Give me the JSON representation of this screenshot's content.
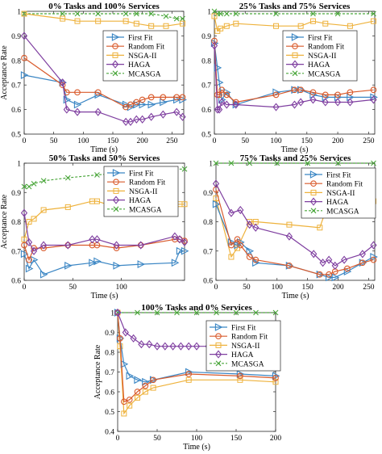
{
  "colors": {
    "first_fit": "#3b86c4",
    "random_fit": "#d95a2b",
    "nsga": "#eeb23c",
    "haga": "#7f3fa0",
    "mcasga": "#4aa63b"
  },
  "chart_data": [
    {
      "type": "line",
      "title": "0% Tasks and 100% Services",
      "xlabel": "Time (s)",
      "ylabel": "Acceptance Rate",
      "xlim": [
        0,
        270
      ],
      "ylim": [
        0.5,
        1
      ],
      "xticks": [
        0,
        50,
        100,
        150,
        200,
        250
      ],
      "yticks": [
        0.5,
        0.6,
        0.7,
        0.8,
        0.9,
        1
      ],
      "show_ylabel": true,
      "legend": "right",
      "series": [
        {
          "name": "First Fit",
          "x": [
            0,
            65,
            72,
            90,
            125,
            172,
            180,
            190,
            200,
            215,
            235,
            258,
            268
          ],
          "y": [
            0.74,
            0.71,
            0.64,
            0.62,
            0.66,
            0.62,
            0.61,
            0.62,
            0.62,
            0.62,
            0.63,
            0.64,
            0.64
          ]
        },
        {
          "name": "Random Fit",
          "x": [
            0,
            65,
            72,
            90,
            125,
            172,
            180,
            190,
            200,
            215,
            235,
            258,
            268
          ],
          "y": [
            0.81,
            0.7,
            0.67,
            0.67,
            0.67,
            0.61,
            0.62,
            0.63,
            0.64,
            0.65,
            0.65,
            0.65,
            0.65
          ]
        },
        {
          "name": "NSGA-II",
          "x": [
            0,
            65,
            90,
            125,
            172,
            190,
            215,
            240,
            268
          ],
          "y": [
            0.99,
            0.97,
            0.96,
            0.96,
            0.96,
            0.95,
            0.94,
            0.94,
            0.95
          ]
        },
        {
          "name": "HAGA",
          "x": [
            0,
            65,
            72,
            90,
            125,
            172,
            180,
            190,
            200,
            215,
            235,
            258,
            268
          ],
          "y": [
            0.9,
            0.71,
            0.6,
            0.59,
            0.59,
            0.55,
            0.55,
            0.56,
            0.56,
            0.57,
            0.58,
            0.59,
            0.57
          ]
        },
        {
          "name": "MCASGA",
          "x": [
            0,
            65,
            90,
            125,
            172,
            190,
            215,
            240,
            258,
            268
          ],
          "y": [
            0.99,
            0.99,
            0.99,
            0.99,
            0.99,
            0.99,
            0.99,
            0.98,
            0.97,
            0.97
          ]
        }
      ]
    },
    {
      "type": "line",
      "title": "25% Tasks and 75% Services",
      "xlabel": "Time (s)",
      "ylabel": "",
      "xlim": [
        0,
        260
      ],
      "ylim": [
        0.5,
        1
      ],
      "xticks": [
        0,
        50,
        100,
        150,
        200,
        250
      ],
      "yticks": [
        0.5,
        0.6,
        0.7,
        0.8,
        0.9,
        1
      ],
      "show_ylabel": false,
      "legend": "right",
      "series": [
        {
          "name": "First Fit",
          "x": [
            0,
            5,
            8,
            12,
            20,
            35,
            100,
            130,
            140,
            160,
            180,
            200,
            220,
            258
          ],
          "y": [
            0.87,
            0.77,
            0.71,
            0.64,
            0.67,
            0.62,
            0.67,
            0.68,
            0.68,
            0.66,
            0.65,
            0.65,
            0.65,
            0.65
          ]
        },
        {
          "name": "Random Fit",
          "x": [
            0,
            5,
            8,
            12,
            20,
            35,
            100,
            130,
            140,
            160,
            180,
            200,
            220,
            258
          ],
          "y": [
            0.88,
            0.66,
            0.66,
            0.68,
            0.66,
            0.63,
            0.66,
            0.68,
            0.68,
            0.67,
            0.66,
            0.66,
            0.67,
            0.68
          ]
        },
        {
          "name": "NSGA-II",
          "x": [
            0,
            5,
            10,
            20,
            35,
            100,
            140,
            160,
            180,
            220,
            258
          ],
          "y": [
            0.98,
            0.92,
            0.93,
            0.94,
            0.95,
            0.94,
            0.94,
            0.96,
            0.95,
            0.94,
            0.96
          ]
        },
        {
          "name": "HAGA",
          "x": [
            0,
            5,
            8,
            12,
            20,
            35,
            100,
            130,
            140,
            160,
            180,
            200,
            220,
            258
          ],
          "y": [
            0.86,
            0.6,
            0.6,
            0.63,
            0.62,
            0.62,
            0.61,
            0.62,
            0.63,
            0.64,
            0.63,
            0.63,
            0.63,
            0.64
          ]
        },
        {
          "name": "MCASGA",
          "x": [
            0,
            5,
            10,
            20,
            35,
            100,
            160,
            200,
            258
          ],
          "y": [
            1,
            0.99,
            0.99,
            0.99,
            0.99,
            0.99,
            0.99,
            0.99,
            0.99
          ]
        }
      ]
    },
    {
      "type": "line",
      "title": "50% Tasks and 50% Services",
      "xlabel": "Time (s)",
      "ylabel": "Acceptance Rate",
      "xlim": [
        0,
        165
      ],
      "ylim": [
        0.6,
        1
      ],
      "xticks": [
        0,
        50,
        100
      ],
      "yticks": [
        0.6,
        0.7,
        0.8,
        0.9,
        1
      ],
      "show_ylabel": true,
      "legend": "right",
      "series": [
        {
          "name": "First Fit",
          "x": [
            0,
            5,
            10,
            20,
            45,
            70,
            75,
            95,
            120,
            155,
            160,
            165
          ],
          "y": [
            0.69,
            0.64,
            0.67,
            0.62,
            0.65,
            0.66,
            0.665,
            0.65,
            0.655,
            0.66,
            0.7,
            0.7
          ]
        },
        {
          "name": "Random Fit",
          "x": [
            0,
            5,
            10,
            20,
            45,
            70,
            75,
            95,
            120,
            155,
            160,
            165
          ],
          "y": [
            0.72,
            0.67,
            0.71,
            0.71,
            0.72,
            0.72,
            0.72,
            0.71,
            0.72,
            0.74,
            0.74,
            0.735
          ]
        },
        {
          "name": "NSGA-II",
          "x": [
            0,
            5,
            10,
            20,
            45,
            70,
            75,
            95,
            120,
            155,
            160,
            165
          ],
          "y": [
            0.74,
            0.8,
            0.81,
            0.84,
            0.85,
            0.87,
            0.87,
            0.85,
            0.85,
            0.86,
            0.86,
            0.86
          ]
        },
        {
          "name": "HAGA",
          "x": [
            0,
            5,
            10,
            20,
            45,
            70,
            75,
            95,
            120,
            155,
            160,
            165
          ],
          "y": [
            0.83,
            0.73,
            0.7,
            0.72,
            0.72,
            0.74,
            0.74,
            0.72,
            0.72,
            0.75,
            0.74,
            0.73
          ]
        },
        {
          "name": "MCASGA",
          "x": [
            0,
            5,
            10,
            20,
            45,
            75,
            95,
            120,
            155,
            165
          ],
          "y": [
            0.92,
            0.92,
            0.93,
            0.94,
            0.95,
            0.96,
            0.965,
            0.97,
            0.98,
            0.98
          ]
        }
      ]
    },
    {
      "type": "line",
      "title": "75% Tasks and 25% Services",
      "xlabel": "Time (s)",
      "ylabel": "",
      "xlim": [
        0,
        260
      ],
      "ylim": [
        0.6,
        1
      ],
      "xticks": [
        0,
        50,
        100,
        150,
        200,
        250
      ],
      "yticks": [
        0.6,
        0.7,
        0.8,
        0.9,
        1
      ],
      "show_ylabel": false,
      "legend": "right",
      "series": [
        {
          "name": "First Fit",
          "x": [
            0,
            25,
            35,
            40,
            55,
            65,
            120,
            170,
            185,
            195,
            215,
            240,
            258
          ],
          "y": [
            0.86,
            0.73,
            0.72,
            0.73,
            0.7,
            0.66,
            0.65,
            0.62,
            0.61,
            0.61,
            0.63,
            0.66,
            0.68
          ]
        },
        {
          "name": "Random Fit",
          "x": [
            0,
            25,
            35,
            40,
            55,
            65,
            120,
            170,
            185,
            195,
            215,
            240,
            258
          ],
          "y": [
            0.91,
            0.72,
            0.74,
            0.72,
            0.68,
            0.67,
            0.65,
            0.62,
            0.62,
            0.63,
            0.64,
            0.66,
            0.67
          ]
        },
        {
          "name": "NSGA-II",
          "x": [
            0,
            25,
            35,
            55,
            65,
            120,
            170,
            185,
            220,
            258
          ],
          "y": [
            0.88,
            0.68,
            0.71,
            0.8,
            0.8,
            0.79,
            0.78,
            0.87,
            0.87,
            0.87
          ]
        },
        {
          "name": "HAGA",
          "x": [
            0,
            25,
            40,
            55,
            65,
            120,
            160,
            175,
            185,
            195,
            210,
            240,
            258
          ],
          "y": [
            0.93,
            0.83,
            0.84,
            0.79,
            0.78,
            0.75,
            0.69,
            0.66,
            0.67,
            0.65,
            0.67,
            0.69,
            0.72
          ]
        },
        {
          "name": "MCASGA",
          "x": [
            0,
            25,
            55,
            100,
            150,
            200,
            258
          ],
          "y": [
            1,
            1,
            1,
            1,
            1,
            1,
            1
          ]
        }
      ]
    },
    {
      "type": "line",
      "title": "100% Tasks and 0% Services",
      "xlabel": "Time (s)",
      "ylabel": "Acceptance Rate",
      "xlim": [
        0,
        200
      ],
      "ylim": [
        0.4,
        1
      ],
      "xticks": [
        0,
        50,
        100,
        150,
        200
      ],
      "yticks": [
        0.4,
        0.5,
        0.6,
        0.7,
        0.8,
        0.9,
        1
      ],
      "show_ylabel": true,
      "legend": "right",
      "series": [
        {
          "name": "First Fit",
          "x": [
            0,
            3,
            8,
            15,
            25,
            35,
            45,
            90,
            155,
            200
          ],
          "y": [
            1,
            0.87,
            0.74,
            0.68,
            0.66,
            0.65,
            0.66,
            0.7,
            0.69,
            0.68
          ]
        },
        {
          "name": "Random Fit",
          "x": [
            0,
            3,
            8,
            15,
            25,
            35,
            45,
            90,
            155,
            200
          ],
          "y": [
            1,
            0.87,
            0.55,
            0.56,
            0.6,
            0.63,
            0.66,
            0.69,
            0.68,
            0.67
          ]
        },
        {
          "name": "NSGA-II",
          "x": [
            0,
            3,
            8,
            15,
            25,
            35,
            45,
            90,
            155,
            200
          ],
          "y": [
            1,
            0.83,
            0.49,
            0.53,
            0.57,
            0.6,
            0.62,
            0.66,
            0.66,
            0.65
          ]
        },
        {
          "name": "HAGA",
          "x": [
            0,
            10,
            20,
            30,
            40,
            50,
            60,
            70,
            80,
            90,
            100,
            115,
            130,
            145,
            160,
            200
          ],
          "y": [
            1,
            0.9,
            0.87,
            0.84,
            0.84,
            0.83,
            0.83,
            0.83,
            0.83,
            0.83,
            0.83,
            0.83,
            0.83,
            0.83,
            0.82,
            0.82
          ]
        },
        {
          "name": "MCASGA",
          "x": [
            0,
            25,
            50,
            75,
            100,
            125,
            150,
            175,
            200
          ],
          "y": [
            1,
            1,
            1,
            1,
            1,
            1,
            1,
            1,
            1
          ]
        }
      ]
    }
  ]
}
